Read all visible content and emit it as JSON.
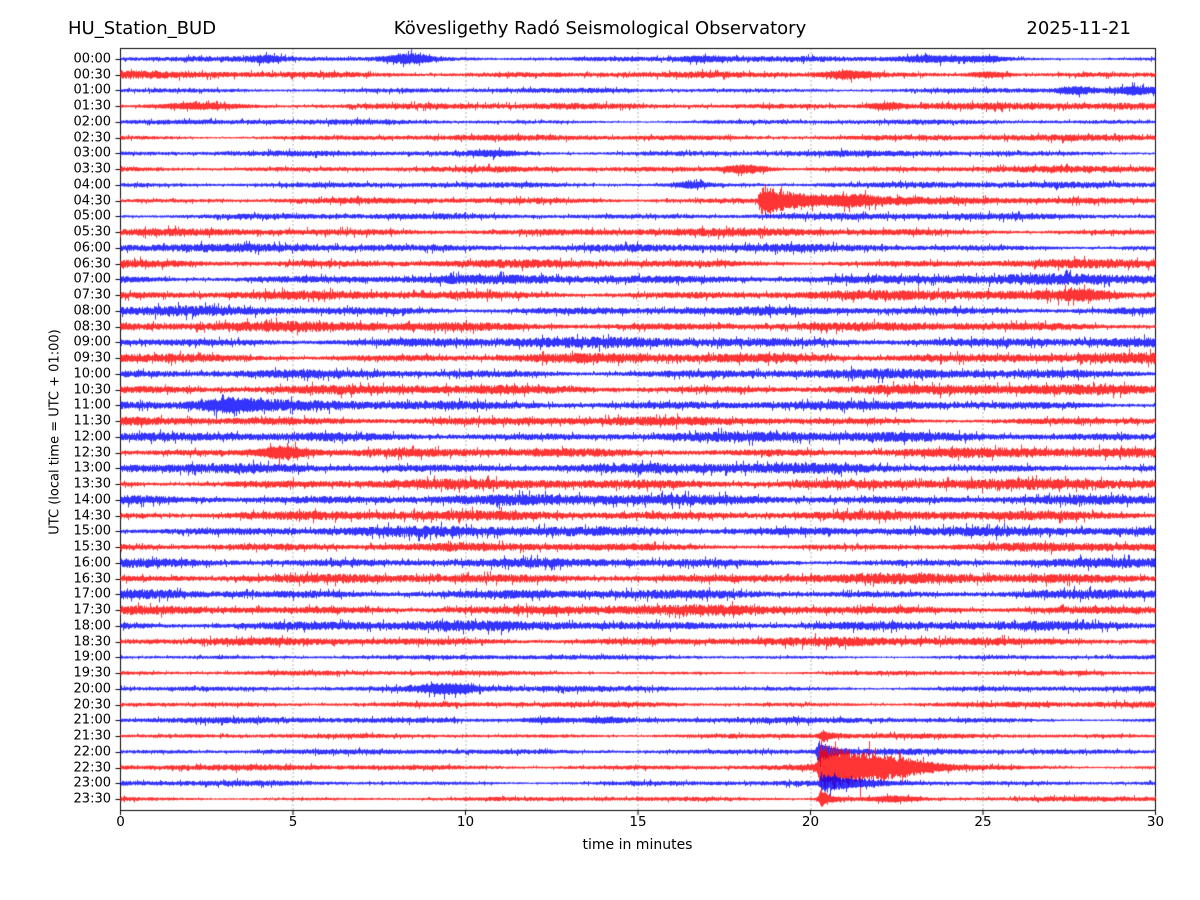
{
  "chart_data": {
    "type": "line",
    "subtype": "helicorder-dayplot",
    "station": "HU_Station_BUD",
    "observatory": "Kövesligethy Radó Seismological Observatory",
    "date": "2025-11-21",
    "xlabel": "time in minutes",
    "ylabel": "UTC (local time = UTC + 01:00)",
    "xlim": [
      0,
      30
    ],
    "x_ticks": [
      0,
      5,
      10,
      15,
      20,
      25,
      30
    ],
    "grid": "vertical dotted gridlines at interior 5-minute ticks",
    "legend": "none",
    "minutes_per_line": 30,
    "colors": {
      "b": "#0000ff",
      "r": "#ff0000",
      "text": "#000000",
      "frame": "#000000"
    },
    "amplitude_units": "relative noise half-amplitude (render px); events: t=minutes, a=amplitude, w=width/decay minutes, k=packet|spike",
    "traces": [
      {
        "label": "00:00",
        "c": "b",
        "a": 2.6,
        "e": [
          {
            "t": 8.35,
            "a": 4.0,
            "w": 0.45,
            "k": "packet"
          },
          {
            "t": 4.25,
            "a": 2.2,
            "w": 0.35,
            "k": "packet"
          },
          {
            "t": 16.9,
            "a": 2.2,
            "w": 0.5,
            "k": "packet"
          },
          {
            "t": 23.4,
            "a": 2.6,
            "w": 0.7,
            "k": "packet"
          },
          {
            "t": 25.1,
            "a": 2.2,
            "w": 0.4,
            "k": "packet"
          }
        ]
      },
      {
        "label": "00:30",
        "c": "r",
        "a": 3.3,
        "e": [
          {
            "t": 21.1,
            "a": 3.0,
            "w": 0.5,
            "k": "packet"
          },
          {
            "t": 25.2,
            "a": 2.8,
            "w": 0.45,
            "k": "packet"
          }
        ]
      },
      {
        "label": "01:00",
        "c": "b",
        "a": 2.7,
        "e": [
          {
            "t": 27.7,
            "a": 2.6,
            "w": 0.35,
            "k": "packet"
          },
          {
            "t": 29.4,
            "a": 2.6,
            "w": 0.3,
            "k": "packet"
          }
        ]
      },
      {
        "label": "01:30",
        "c": "r",
        "a": 3.3,
        "e": [
          {
            "t": 2.3,
            "a": 2.4,
            "w": 0.8,
            "k": "packet"
          },
          {
            "t": 22.2,
            "a": 2.4,
            "w": 0.4,
            "k": "packet"
          }
        ]
      },
      {
        "label": "02:00",
        "c": "b",
        "a": 2.5,
        "e": []
      },
      {
        "label": "02:30",
        "c": "r",
        "a": 2.9,
        "e": []
      },
      {
        "label": "03:00",
        "c": "b",
        "a": 2.7,
        "e": [
          {
            "t": 10.8,
            "a": 2.0,
            "w": 0.5,
            "k": "packet"
          }
        ]
      },
      {
        "label": "03:30",
        "c": "r",
        "a": 3.1,
        "e": [
          {
            "t": 18.15,
            "a": 4.0,
            "w": 0.5,
            "k": "packet"
          }
        ]
      },
      {
        "label": "04:00",
        "c": "b",
        "a": 2.9,
        "e": [
          {
            "t": 16.6,
            "a": 2.6,
            "w": 0.35,
            "k": "packet"
          }
        ]
      },
      {
        "label": "04:30",
        "c": "r",
        "a": 3.1,
        "e": [
          {
            "t": 18.62,
            "a": 13.5,
            "w": 1.3,
            "k": "spike"
          },
          {
            "t": 21.2,
            "a": 3.4,
            "w": 0.6,
            "k": "packet"
          }
        ]
      },
      {
        "label": "05:00",
        "c": "b",
        "a": 3.1,
        "e": []
      },
      {
        "label": "05:30",
        "c": "r",
        "a": 3.7,
        "e": []
      },
      {
        "label": "06:00",
        "c": "b",
        "a": 3.9,
        "e": []
      },
      {
        "label": "06:30",
        "c": "r",
        "a": 4.3,
        "e": []
      },
      {
        "label": "07:00",
        "c": "b",
        "a": 4.9,
        "e": []
      },
      {
        "label": "07:30",
        "c": "r",
        "a": 4.7,
        "e": [
          {
            "t": 27.9,
            "a": 3.2,
            "w": 0.5,
            "k": "packet"
          }
        ]
      },
      {
        "label": "08:00",
        "c": "b",
        "a": 4.5,
        "e": []
      },
      {
        "label": "08:30",
        "c": "r",
        "a": 4.7,
        "e": []
      },
      {
        "label": "09:00",
        "c": "b",
        "a": 4.9,
        "e": []
      },
      {
        "label": "09:30",
        "c": "r",
        "a": 5.1,
        "e": []
      },
      {
        "label": "10:00",
        "c": "b",
        "a": 4.5,
        "e": []
      },
      {
        "label": "10:30",
        "c": "r",
        "a": 5.1,
        "e": []
      },
      {
        "label": "11:00",
        "c": "b",
        "a": 4.7,
        "e": [
          {
            "t": 3.2,
            "a": 4.5,
            "w": 0.7,
            "k": "packet"
          }
        ]
      },
      {
        "label": "11:30",
        "c": "r",
        "a": 4.3,
        "e": []
      },
      {
        "label": "12:00",
        "c": "b",
        "a": 4.7,
        "e": []
      },
      {
        "label": "12:30",
        "c": "r",
        "a": 4.7,
        "e": [
          {
            "t": 4.75,
            "a": 6.0,
            "w": 0.55,
            "k": "packet"
          }
        ]
      },
      {
        "label": "13:00",
        "c": "b",
        "a": 4.9,
        "e": []
      },
      {
        "label": "13:30",
        "c": "r",
        "a": 5.1,
        "e": []
      },
      {
        "label": "14:00",
        "c": "b",
        "a": 5.1,
        "e": []
      },
      {
        "label": "14:30",
        "c": "r",
        "a": 4.7,
        "e": []
      },
      {
        "label": "15:00",
        "c": "b",
        "a": 4.9,
        "e": []
      },
      {
        "label": "15:30",
        "c": "r",
        "a": 4.3,
        "e": []
      },
      {
        "label": "16:00",
        "c": "b",
        "a": 4.7,
        "e": []
      },
      {
        "label": "16:30",
        "c": "r",
        "a": 4.7,
        "e": []
      },
      {
        "label": "17:00",
        "c": "b",
        "a": 4.9,
        "e": []
      },
      {
        "label": "17:30",
        "c": "r",
        "a": 4.7,
        "e": []
      },
      {
        "label": "18:00",
        "c": "b",
        "a": 4.7,
        "e": []
      },
      {
        "label": "18:30",
        "c": "r",
        "a": 4.1,
        "e": []
      },
      {
        "label": "19:00",
        "c": "b",
        "a": 2.2,
        "e": []
      },
      {
        "label": "19:30",
        "c": "r",
        "a": 2.4,
        "e": []
      },
      {
        "label": "20:00",
        "c": "b",
        "a": 2.9,
        "e": [
          {
            "t": 9.5,
            "a": 4.2,
            "w": 0.6,
            "k": "packet"
          }
        ]
      },
      {
        "label": "20:30",
        "c": "r",
        "a": 2.9,
        "e": []
      },
      {
        "label": "21:00",
        "c": "b",
        "a": 2.9,
        "e": [
          {
            "t": 12.3,
            "a": 1.8,
            "w": 0.5,
            "k": "packet"
          },
          {
            "t": 14.0,
            "a": 1.6,
            "w": 0.4,
            "k": "packet"
          }
        ]
      },
      {
        "label": "21:30",
        "c": "r",
        "a": 2.3,
        "e": [
          {
            "t": 20.35,
            "a": 5.0,
            "w": 0.3,
            "k": "spike"
          }
        ]
      },
      {
        "label": "22:00",
        "c": "b",
        "a": 2.7,
        "e": [
          {
            "t": 20.28,
            "a": 10.0,
            "w": 0.35,
            "k": "spike"
          }
        ]
      },
      {
        "label": "22:30",
        "c": "r",
        "a": 2.7,
        "e": [
          {
            "t": 20.33,
            "a": 21.0,
            "w": 1.3,
            "k": "spike"
          },
          {
            "t": 21.6,
            "a": 6.0,
            "w": 0.9,
            "k": "packet"
          },
          {
            "t": 22.9,
            "a": 3.0,
            "w": 0.7,
            "k": "packet"
          }
        ]
      },
      {
        "label": "23:00",
        "c": "b",
        "a": 2.7,
        "e": [
          {
            "t": 20.4,
            "a": 7.5,
            "w": 1.0,
            "k": "spike"
          }
        ]
      },
      {
        "label": "23:30",
        "c": "r",
        "a": 2.3,
        "e": [
          {
            "t": 20.33,
            "a": 9.0,
            "w": 0.3,
            "k": "spike"
          },
          {
            "t": 22.4,
            "a": 2.2,
            "w": 0.5,
            "k": "packet"
          }
        ]
      }
    ]
  }
}
